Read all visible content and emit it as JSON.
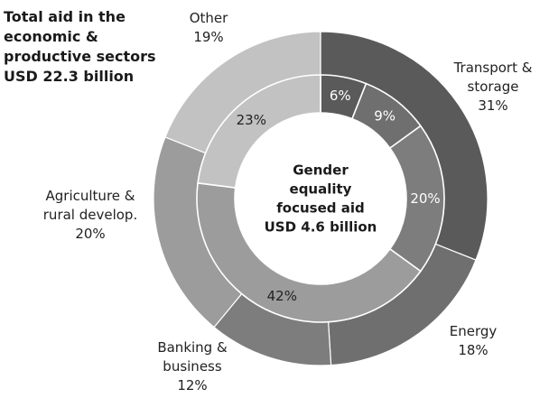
{
  "chart_data": {
    "type": "donut",
    "title": [
      "Total aid in the",
      "economic &",
      "productive sectors",
      "USD 22.3 billion"
    ],
    "center_label": [
      "Gender",
      "equality",
      "focused aid",
      "USD 4.6 billion"
    ],
    "categories": [
      "Transport & storage",
      "Energy",
      "Banking & business",
      "Agriculture & rural develop.",
      "Other"
    ],
    "series": [
      {
        "ring": "outer",
        "values": [
          31,
          18,
          12,
          20,
          19
        ],
        "value_labels": [
          "31%",
          "18%",
          "12%",
          "20%",
          "19%"
        ],
        "category_labels": [
          [
            "Transport &",
            "storage",
            "31%"
          ],
          [
            "Energy",
            "18%"
          ],
          [
            "Banking &",
            "business",
            "12%"
          ],
          [
            "Agriculture &",
            "rural develop.",
            "20%"
          ],
          [
            "Other",
            "19%"
          ]
        ]
      },
      {
        "ring": "inner",
        "values": [
          6,
          9,
          20,
          42,
          23
        ],
        "value_labels": [
          "6%",
          "9%",
          "20%",
          "42%",
          "23%"
        ]
      }
    ],
    "colors": {
      "outer": [
        "#5a5a5a",
        "#6f6f6f",
        "#7d7d7d",
        "#9c9c9c",
        "#c2c2c2"
      ],
      "inner": [
        "#5a5a5a",
        "#6f6f6f",
        "#7d7d7d",
        "#9c9c9c",
        "#c2c2c2"
      ],
      "separator": "#ffffff",
      "inner_text_dark": "#ffffff",
      "inner_text_light": "#222222"
    },
    "inner_slice_order": [
      "Transport & storage",
      "Energy (top)",
      "Energy",
      "Banking & business / Agriculture",
      "Other"
    ]
  }
}
